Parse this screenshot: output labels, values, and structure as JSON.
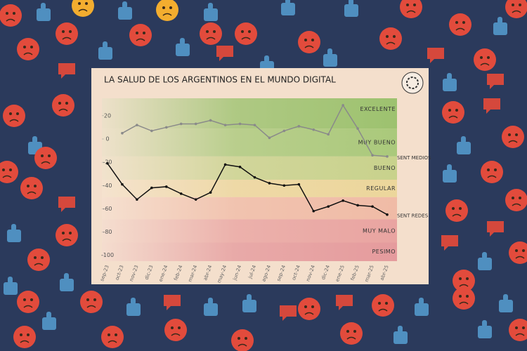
{
  "chart_data": {
    "type": "line",
    "title": "LA SALUD DE LOS ARGENTINOS EN EL MUNDO DIGITAL",
    "categories": [
      "sep-23",
      "oct-23",
      "nov-23",
      "dic-23",
      "ene-24",
      "feb-24",
      "mar-24",
      "abr-24",
      "may-24",
      "jun-24",
      "jul-24",
      "ago-24",
      "sep-24",
      "oct-24",
      "nov-24",
      "dic-24",
      "ene-25",
      "feb-25",
      "mar-25",
      "abr-25"
    ],
    "series": [
      {
        "name": "SENT MEDIOS",
        "color": "#8a8a8a",
        "values": [
          null,
          5,
          12,
          7,
          10,
          13,
          13,
          16,
          12,
          13,
          12,
          1,
          7,
          11,
          8,
          4,
          29,
          9,
          -14,
          -15
        ]
      },
      {
        "name": "SENT REDES",
        "color": "#111111",
        "values": [
          -21,
          -39,
          -52,
          -42,
          -41,
          -47,
          -52,
          -46,
          -22,
          -24,
          -33,
          -38,
          -40,
          -39,
          -62,
          -58,
          -53,
          -57,
          -58,
          -65
        ]
      }
    ],
    "bands": [
      {
        "label": "EXCELENTE",
        "range": [
          9,
          35
        ],
        "color": "#9dc26f"
      },
      {
        "label": "MUY BUENO",
        "range": [
          -15,
          9
        ],
        "color": "#aac97b"
      },
      {
        "label": "BUENO",
        "range": [
          -35,
          -15
        ],
        "color": "#c8d28c"
      },
      {
        "label": "REGULAR",
        "range": [
          -50,
          -35
        ],
        "color": "#ecd69b"
      },
      {
        "range": [
          -69,
          -50
        ],
        "color": "#f0bba6"
      },
      {
        "label": "MUY MALO",
        "range": [
          -89,
          -69
        ],
        "color": "#e9a4a1"
      },
      {
        "label": "PESIMO",
        "range": [
          -105,
          -89
        ],
        "color": "#e59b9d"
      }
    ],
    "ylim": [
      -105,
      35
    ],
    "yticks": [
      20,
      0,
      -20,
      -40,
      -60,
      -80,
      -100
    ],
    "grid": false
  }
}
